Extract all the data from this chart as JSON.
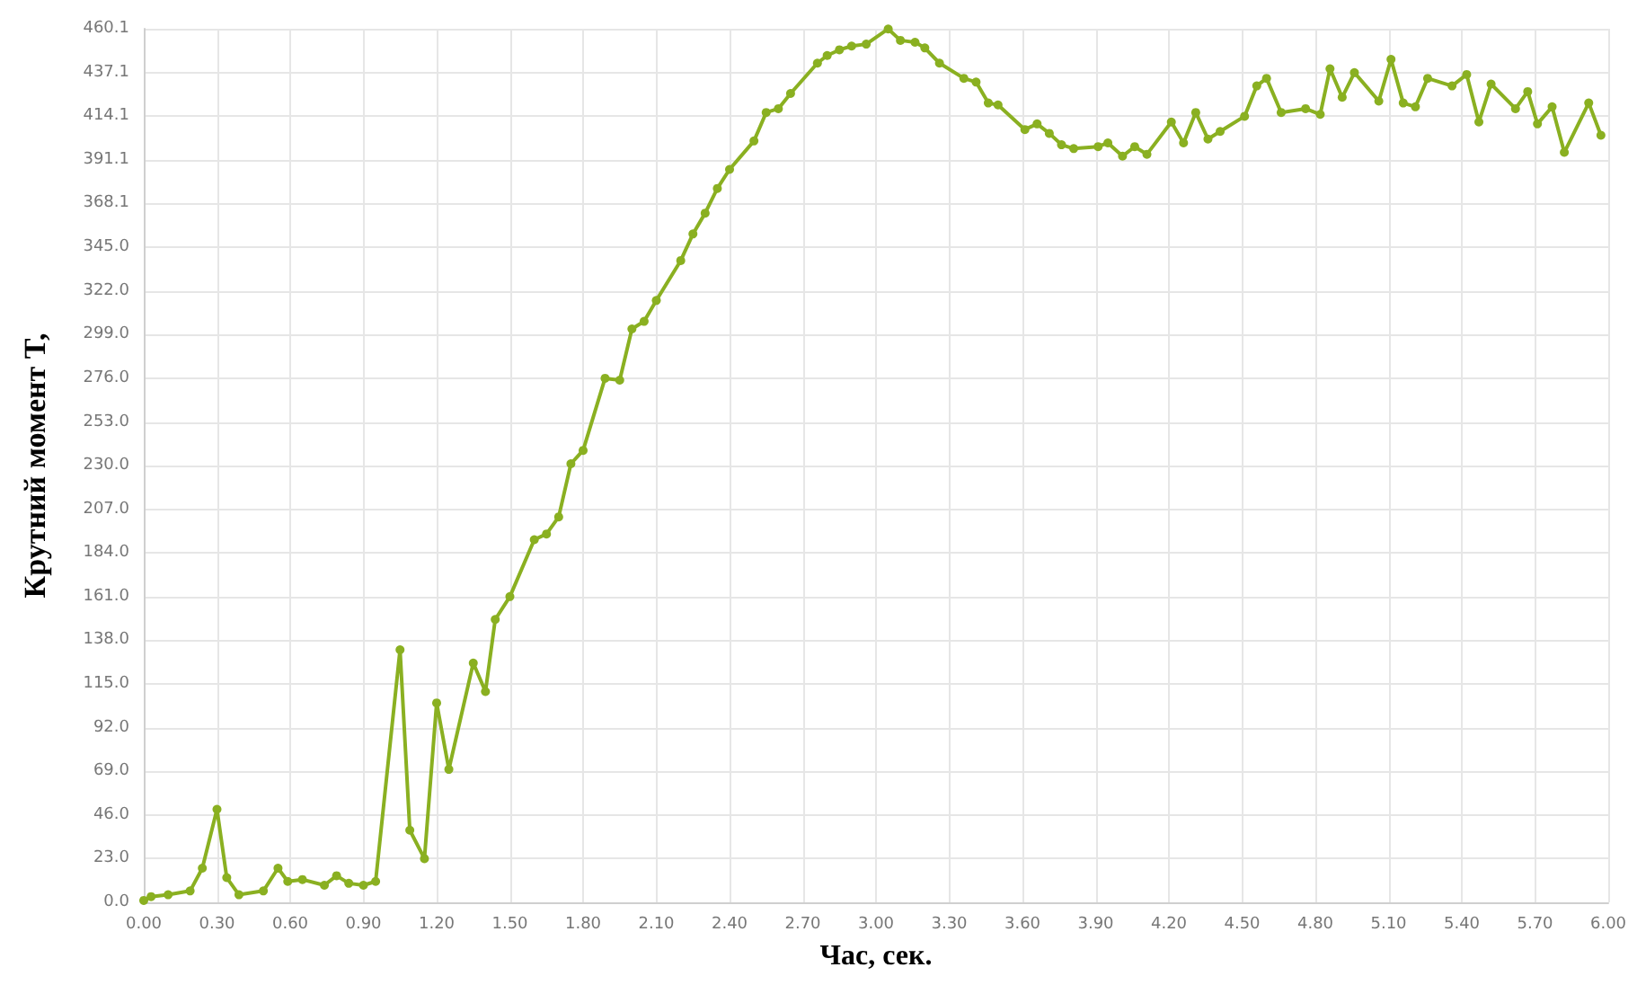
{
  "chart_data": {
    "type": "line",
    "xlabel": "Час, сек.",
    "ylabel": "Крутний момент T,",
    "xlim": [
      0,
      6
    ],
    "ylim": [
      0,
      460.1
    ],
    "xticks": [
      {
        "value": 0,
        "label": "0.00"
      },
      {
        "value": 0.3,
        "label": "0.30"
      },
      {
        "value": 0.6,
        "label": "0.60"
      },
      {
        "value": 0.9,
        "label": "0.90"
      },
      {
        "value": 1.2,
        "label": "1.20"
      },
      {
        "value": 1.5,
        "label": "1.50"
      },
      {
        "value": 1.8,
        "label": "1.80"
      },
      {
        "value": 2.1,
        "label": "2.10"
      },
      {
        "value": 2.4,
        "label": "2.40"
      },
      {
        "value": 2.7,
        "label": "2.70"
      },
      {
        "value": 3,
        "label": "3.00"
      },
      {
        "value": 3.3,
        "label": "3.30"
      },
      {
        "value": 3.6,
        "label": "3.60"
      },
      {
        "value": 3.9,
        "label": "3.90"
      },
      {
        "value": 4.2,
        "label": "4.20"
      },
      {
        "value": 4.5,
        "label": "4.50"
      },
      {
        "value": 4.8,
        "label": "4.80"
      },
      {
        "value": 5.1,
        "label": "5.10"
      },
      {
        "value": 5.4,
        "label": "5.40"
      },
      {
        "value": 5.7,
        "label": "5.70"
      },
      {
        "value": 6,
        "label": "6.00"
      }
    ],
    "yticks": [
      {
        "value": 0,
        "label": "0.0"
      },
      {
        "value": 23,
        "label": "23.0"
      },
      {
        "value": 46,
        "label": "46.0"
      },
      {
        "value": 69,
        "label": "69.0"
      },
      {
        "value": 92,
        "label": "92.0"
      },
      {
        "value": 115,
        "label": "115.0"
      },
      {
        "value": 138,
        "label": "138.0"
      },
      {
        "value": 161,
        "label": "161.0"
      },
      {
        "value": 184,
        "label": "184.0"
      },
      {
        "value": 207,
        "label": "207.0"
      },
      {
        "value": 230,
        "label": "230.0"
      },
      {
        "value": 253,
        "label": "253.0"
      },
      {
        "value": 276,
        "label": "276.0"
      },
      {
        "value": 299,
        "label": "299.0"
      },
      {
        "value": 322,
        "label": "322.0"
      },
      {
        "value": 345,
        "label": "345.0"
      },
      {
        "value": 368.1,
        "label": "368.1"
      },
      {
        "value": 391.1,
        "label": "391.1"
      },
      {
        "value": 414.1,
        "label": "414.1"
      },
      {
        "value": 437.1,
        "label": "437.1"
      },
      {
        "value": 460.1,
        "label": "460.1"
      }
    ],
    "grid": true,
    "marker": "circle",
    "line_style": "solid",
    "series": [
      {
        "color": "#8ab021",
        "x": [
          0,
          0.03,
          0.1,
          0.19,
          0.24,
          0.3,
          0.34,
          0.39,
          0.49,
          0.55,
          0.59,
          0.65,
          0.74,
          0.79,
          0.84,
          0.9,
          0.95,
          1.05,
          1.09,
          1.15,
          1.2,
          1.25,
          1.35,
          1.4,
          1.44,
          1.5,
          1.6,
          1.65,
          1.7,
          1.75,
          1.8,
          1.89,
          1.95,
          2,
          2.05,
          2.1,
          2.2,
          2.25,
          2.3,
          2.35,
          2.4,
          2.5,
          2.55,
          2.6,
          2.65,
          2.76,
          2.8,
          2.85,
          2.9,
          2.96,
          3.05,
          3.1,
          3.16,
          3.2,
          3.26,
          3.36,
          3.41,
          3.46,
          3.5,
          3.61,
          3.66,
          3.71,
          3.76,
          3.81,
          3.91,
          3.95,
          4.01,
          4.06,
          4.11,
          4.21,
          4.26,
          4.31,
          4.36,
          4.41,
          4.51,
          4.56,
          4.6,
          4.66,
          4.76,
          4.82,
          4.86,
          4.91,
          4.96,
          5.06,
          5.11,
          5.16,
          5.21,
          5.26,
          5.36,
          5.42,
          5.47,
          5.52,
          5.62,
          5.67,
          5.71,
          5.77,
          5.82,
          5.92,
          5.97
        ],
        "values": [
          1,
          3,
          4,
          6,
          18,
          49,
          13,
          4,
          6,
          18,
          11,
          12,
          9,
          14,
          10,
          9,
          11,
          133,
          38,
          23,
          105,
          70,
          126,
          111,
          149,
          161,
          191,
          194,
          203,
          231,
          238,
          276,
          275,
          302,
          306,
          317,
          338,
          352,
          363,
          376,
          386,
          401,
          416,
          418,
          426,
          442,
          446,
          449,
          451,
          452,
          460,
          454,
          453,
          450,
          442,
          434,
          432,
          421,
          420,
          407,
          410,
          405,
          399,
          397,
          398,
          400,
          393,
          398,
          394,
          411,
          400,
          416,
          402,
          406,
          414,
          430,
          434,
          416,
          418,
          415,
          439,
          424,
          437,
          422,
          444,
          421,
          419,
          434,
          430,
          436,
          411,
          431,
          418,
          427,
          410,
          419,
          395,
          421,
          404
        ]
      }
    ]
  }
}
